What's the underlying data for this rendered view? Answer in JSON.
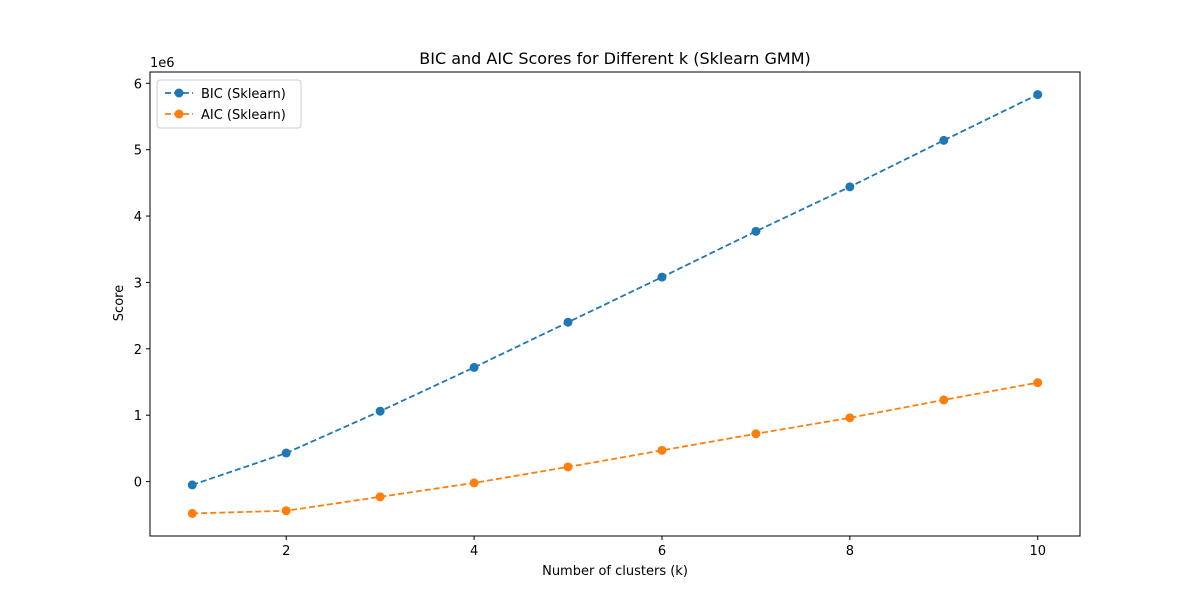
{
  "chart_data": {
    "type": "line",
    "title": "BIC and AIC Scores for Different k  (Sklearn GMM)",
    "xlabel": "Number of clusters (k)",
    "ylabel": "Score",
    "y_offset_label": "1e6",
    "x": [
      1,
      2,
      3,
      4,
      5,
      6,
      7,
      8,
      9,
      10
    ],
    "xlim": [
      0.55,
      10.45
    ],
    "ylim": [
      -0.82,
      6.17
    ],
    "x_ticks": [
      2,
      4,
      6,
      8,
      10
    ],
    "y_ticks": [
      0,
      1,
      2,
      3,
      4,
      5,
      6
    ],
    "y_unit": "1e6",
    "grid": false,
    "legend_position": "top-left",
    "series": [
      {
        "name": "BIC (Sklearn)",
        "color": "#1f77b4",
        "linestyle": "dashed",
        "marker": "circle",
        "values": [
          -0.05,
          0.43,
          1.06,
          1.72,
          2.4,
          3.08,
          3.77,
          4.44,
          5.14,
          5.83
        ]
      },
      {
        "name": "AIC (Sklearn)",
        "color": "#ff7f0e",
        "linestyle": "dashed",
        "marker": "circle",
        "values": [
          -0.48,
          -0.44,
          -0.23,
          -0.02,
          0.22,
          0.47,
          0.72,
          0.96,
          1.23,
          1.49
        ]
      }
    ]
  }
}
